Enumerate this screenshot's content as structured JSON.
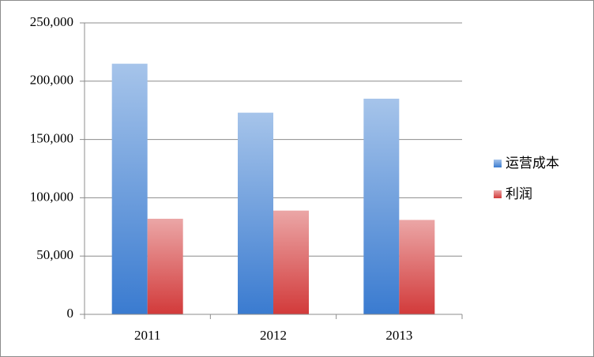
{
  "chart_data": {
    "type": "bar",
    "categories": [
      "2011",
      "2012",
      "2013"
    ],
    "series": [
      {
        "name": "运营成本",
        "color": "#3a7bd0",
        "values": [
          215000,
          173000,
          185000
        ]
      },
      {
        "name": "利润",
        "color": "#d23a3a",
        "values": [
          82000,
          89000,
          81000
        ]
      }
    ],
    "ylim": [
      0,
      250000
    ],
    "yticks": [
      0,
      {
        "value": 50000,
        "label": "50,000"
      },
      {
        "value": 100000,
        "label": "100,000"
      },
      {
        "value": 150000,
        "label": "150,000"
      },
      {
        "value": 200000,
        "label": "200,000"
      },
      {
        "value": 250000,
        "label": "250,000"
      }
    ],
    "grid": true,
    "legend": "right"
  }
}
